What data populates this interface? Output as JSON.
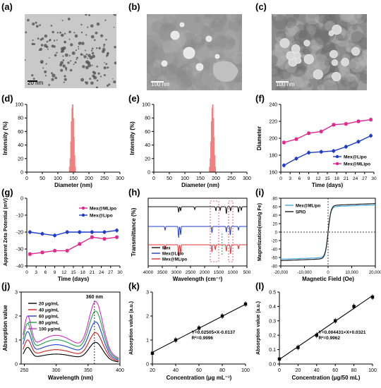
{
  "panel_labels": [
    "(a)",
    "(b)",
    "(c)",
    "(d)",
    "(e)",
    "(f)",
    "(g)",
    "(h)",
    "(i)",
    "(j)",
    "(k)",
    "(l)"
  ],
  "em_images": [
    {
      "label": "(a)",
      "scale_bar": "20 nm",
      "bg": "#c9c9c9"
    },
    {
      "label": "(b)",
      "scale_bar": "100 nm",
      "bg": "#9d9d9d"
    },
    {
      "label": "(c)",
      "scale_bar": "100 nm",
      "bg": "#8c8c8c"
    }
  ],
  "chart_data": [
    {
      "panel": "(d)",
      "type": "bar",
      "xlabel": "Diameter (nm)",
      "ylabel": "Intensity (%)",
      "xlim": [
        0,
        300
      ],
      "ylim": [
        0,
        100
      ],
      "xticks": [
        "0",
        "50",
        "100",
        "150",
        "200",
        "250",
        "300"
      ],
      "yticks": [
        "0",
        "20",
        "40",
        "60",
        "80",
        "100"
      ],
      "x": [
        138,
        140,
        142,
        144,
        146,
        148,
        150,
        152,
        154,
        156
      ],
      "values": [
        8,
        20,
        45,
        75,
        95,
        100,
        80,
        52,
        25,
        8
      ],
      "color": "#f08080"
    },
    {
      "panel": "(e)",
      "type": "bar",
      "xlabel": "Diameter (nm)",
      "ylabel": "Intensity (%)",
      "xlim": [
        0,
        300
      ],
      "ylim": [
        0,
        100
      ],
      "xticks": [
        "0",
        "50",
        "100",
        "150",
        "200",
        "250",
        "300"
      ],
      "yticks": [
        "0",
        "20",
        "40",
        "60",
        "80",
        "100"
      ],
      "x": [
        180,
        182,
        184,
        186,
        188,
        190,
        192,
        194,
        196,
        198
      ],
      "values": [
        8,
        20,
        45,
        75,
        95,
        100,
        80,
        52,
        25,
        8
      ],
      "color": "#f08080"
    },
    {
      "panel": "(f)",
      "type": "line",
      "xlabel": "Time (days)",
      "ylabel": "Diameter",
      "xlim": [
        0,
        30
      ],
      "ylim": [
        160,
        240
      ],
      "xticks": [
        "0",
        "3",
        "6",
        "9",
        "12",
        "15",
        "18",
        "21",
        "24",
        "27",
        "30"
      ],
      "yticks": [
        "160",
        "180",
        "200",
        "220",
        "240"
      ],
      "x": [
        1,
        5,
        9,
        13,
        17,
        21,
        25,
        29
      ],
      "series": [
        {
          "name": "Mex@Lipo",
          "color": "#1f3cc8",
          "values": [
            168,
            176,
            183,
            184,
            185,
            190,
            196,
            203
          ]
        },
        {
          "name": "Mex@MLipo",
          "color": "#e0288c",
          "values": [
            195,
            199,
            206,
            208,
            216,
            217,
            220,
            222
          ]
        }
      ],
      "legend": "bottom-right"
    },
    {
      "panel": "(g)",
      "type": "line",
      "xlabel": "Time (days)",
      "ylabel": "Apparent Zeta Potential (mV)",
      "xlim": [
        0,
        30
      ],
      "ylim": [
        -40,
        0
      ],
      "xticks": [
        "0",
        "3",
        "6",
        "9",
        "12",
        "15",
        "18",
        "21",
        "24",
        "27",
        "30"
      ],
      "yticks": [
        "-40",
        "-30",
        "-20",
        "-10",
        "0"
      ],
      "x": [
        1,
        5,
        9,
        13,
        17,
        21,
        25,
        29
      ],
      "series": [
        {
          "name": "Mex@MLipo",
          "color": "#e0288c",
          "values": [
            -33,
            -32,
            -31,
            -31,
            -27,
            -23,
            -24,
            -23
          ]
        },
        {
          "name": "Mex@Lipo",
          "color": "#1f3cc8",
          "values": [
            -20,
            -21,
            -22,
            -20,
            -20,
            -20,
            -20,
            -19
          ]
        }
      ],
      "legend": "top-right"
    },
    {
      "panel": "(h)",
      "type": "line",
      "xlabel": "Wavelength (cm⁻¹)",
      "ylabel": "Transmittance (%)",
      "xlim": [
        4000,
        500
      ],
      "xticks": [
        "4000",
        "3500",
        "3000",
        "2500",
        "2000",
        "1500",
        "1000",
        "500"
      ],
      "series": [
        {
          "name": "Mex",
          "color": "#111111"
        },
        {
          "name": "Mex@Lipo",
          "color": "#1f3cc8"
        },
        {
          "name": "Mex@MLipo",
          "color": "#e03030"
        }
      ],
      "legend": "bottom-left"
    },
    {
      "panel": "(i)",
      "type": "line",
      "xlabel": "Magnetic Field (Oe)",
      "ylabel": "Magnetization(emu/g Fe)",
      "xlim": [
        -20000,
        20000
      ],
      "ylim": [
        -80,
        80
      ],
      "xticks": [
        "-20,000",
        "-10,000",
        "0",
        "10,000",
        "20,000"
      ],
      "yticks": [
        "-80",
        "-60",
        "-40",
        "-20",
        "0",
        "20",
        "40",
        "60",
        "80"
      ],
      "series": [
        {
          "name": "Mex@MLipo",
          "color": "#4aa8e0",
          "ms": 60
        },
        {
          "name": "SPIO",
          "color": "#222222",
          "ms": 63
        }
      ],
      "legend": "top-left"
    },
    {
      "panel": "(j)",
      "type": "line",
      "xlabel": "Wavelength (nm)",
      "ylabel": "Absorption value",
      "xlim": [
        245,
        400
      ],
      "ylim": [
        0,
        3
      ],
      "xticks": [
        "250",
        "300",
        "350",
        "400"
      ],
      "yticks": [
        "0",
        "1",
        "2",
        "3"
      ],
      "annotation": "360 nm",
      "series": [
        {
          "name": "20 μg/mL",
          "color": "#000000",
          "scale": 0.9
        },
        {
          "name": "40 μg/mL",
          "color": "#d02020",
          "scale": 1.3
        },
        {
          "name": "60 μg/mL",
          "color": "#2040d0",
          "scale": 1.75
        },
        {
          "name": "80 μg/mL",
          "color": "#20a040",
          "scale": 2.2
        },
        {
          "name": "100 μg/mL",
          "color": "#d030c8",
          "scale": 2.6
        }
      ]
    },
    {
      "panel": "(k)",
      "type": "scatter",
      "xlabel": "Concentration (μg mL⁻¹)",
      "ylabel": "Absorption value (a.u.)",
      "xlim": [
        20,
        100
      ],
      "ylim": [
        0,
        3
      ],
      "xticks": [
        "20",
        "40",
        "60",
        "80",
        "100"
      ],
      "yticks": [
        "0",
        "1",
        "2",
        "3"
      ],
      "x": [
        20,
        40,
        60,
        80,
        100
      ],
      "values": [
        0.45,
        1.0,
        1.5,
        2.0,
        2.5
      ],
      "fit_slope": 0.02505,
      "fit_intercept": -0.0137,
      "equation": "Y=0.02505×X-0.0137",
      "r2": "R²=0.9996"
    },
    {
      "panel": "(l)",
      "type": "scatter",
      "xlabel": "Concentration (μg/50 mL)",
      "ylabel": "Absorption value (a.u.)",
      "xlim": [
        0,
        100
      ],
      "ylim": [
        0,
        0.5
      ],
      "xticks": [
        "0",
        "20",
        "40",
        "60",
        "80",
        "100"
      ],
      "yticks": [
        "0.0",
        "0.1",
        "0.2",
        "0.3",
        "0.4",
        "0.5"
      ],
      "x": [
        0,
        20,
        40,
        60,
        80,
        100
      ],
      "values": [
        0.035,
        0.115,
        0.2,
        0.3,
        0.4,
        0.465
      ],
      "fit_slope": 0.004431,
      "fit_intercept": 0.0321,
      "equation": "Y=0.004431×X+0.0321",
      "r2": "R²=0.9962"
    }
  ]
}
